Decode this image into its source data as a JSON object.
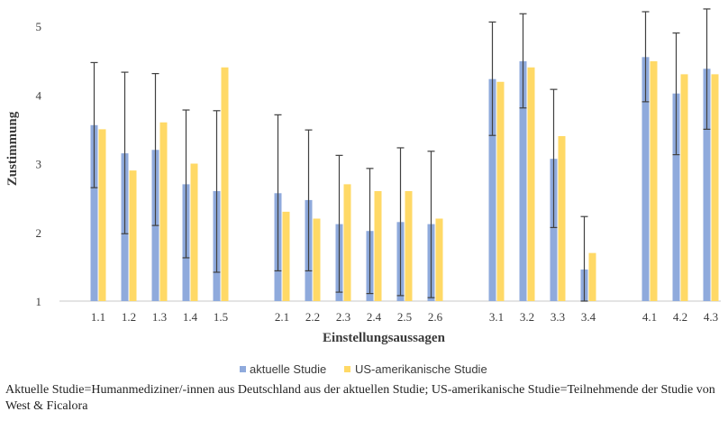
{
  "chart_data": {
    "type": "bar",
    "ylabel": "Zustimmung",
    "xlabel": "Einstellungsaussagen",
    "ylim": [
      1,
      5
    ],
    "yticks": [
      1,
      2,
      3,
      4,
      5
    ],
    "grid": false,
    "legend_position": "bottom",
    "groups": [
      [
        "1.1",
        "1.2",
        "1.3",
        "1.4",
        "1.5"
      ],
      [
        "2.1",
        "2.2",
        "2.3",
        "2.4",
        "2.5",
        "2.6"
      ],
      [
        "3.1",
        "3.2",
        "3.3",
        "3.4"
      ],
      [
        "4.1",
        "4.2",
        "4.3"
      ]
    ],
    "categories": [
      "1.1",
      "1.2",
      "1.3",
      "1.4",
      "1.5",
      "2.1",
      "2.2",
      "2.3",
      "2.4",
      "2.5",
      "2.6",
      "3.1",
      "3.2",
      "3.3",
      "3.4",
      "4.1",
      "4.2",
      "4.3"
    ],
    "series": [
      {
        "name": "aktuelle Studie",
        "color": "#8faadc",
        "values": [
          3.56,
          3.15,
          3.2,
          2.7,
          2.6,
          2.57,
          2.47,
          2.12,
          2.02,
          2.15,
          2.12,
          4.23,
          4.49,
          3.07,
          1.46,
          4.55,
          4.02,
          4.38
        ],
        "error_low": [
          2.65,
          1.98,
          2.1,
          1.63,
          1.42,
          1.44,
          1.44,
          1.13,
          1.11,
          1.08,
          1.05,
          3.41,
          3.81,
          2.07,
          1.0,
          3.9,
          3.13,
          3.5
        ],
        "error_high": [
          4.47,
          4.33,
          4.31,
          3.78,
          3.77,
          3.71,
          3.49,
          3.12,
          2.93,
          3.23,
          3.18,
          5.06,
          5.18,
          4.08,
          2.23,
          5.21,
          4.9,
          5.25
        ]
      },
      {
        "name": "US-amerikanische Studie",
        "color": "#ffd966",
        "values": [
          3.5,
          2.9,
          3.6,
          3.0,
          4.4,
          2.3,
          2.2,
          2.7,
          2.6,
          2.6,
          2.2,
          4.19,
          4.4,
          3.4,
          1.7,
          4.49,
          4.3,
          4.3
        ]
      }
    ]
  },
  "caption": "Aktuelle Studie=Humanmediziner/-innen aus Deutschland aus der aktuellen Studie; US-amerikanische Studie=Teilnehmende der Studie von West & Ficalora"
}
